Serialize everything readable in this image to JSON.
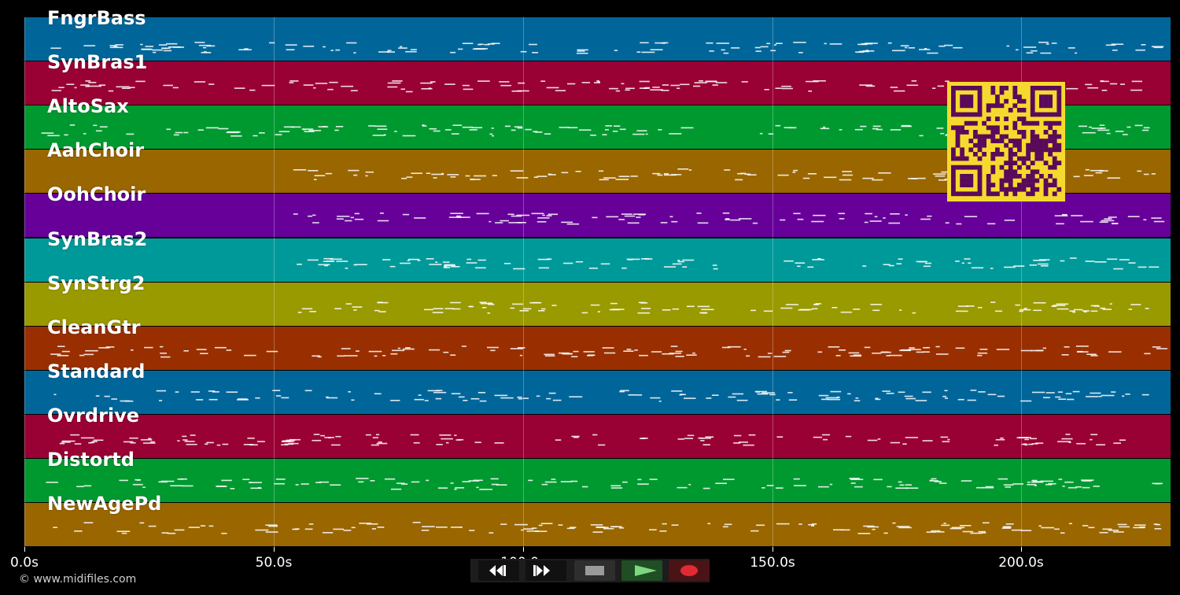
{
  "tracks": [
    {
      "name": "FngrBass",
      "color": "#00669a"
    },
    {
      "name": "SynBras1",
      "color": "#990033"
    },
    {
      "name": "AltoSax",
      "color": "#009930"
    },
    {
      "name": "AahChoir",
      "color": "#996600"
    },
    {
      "name": "OohChoir",
      "color": "#660099"
    },
    {
      "name": "SynBras2",
      "color": "#009999"
    },
    {
      "name": "SynStrg2",
      "color": "#999900"
    },
    {
      "name": "CleanGtr",
      "color": "#992f00"
    },
    {
      "name": "Standard",
      "color": "#00669a"
    },
    {
      "name": "Ovrdrive",
      "color": "#990033"
    },
    {
      "name": "Distortd",
      "color": "#009930"
    },
    {
      "name": "NewAgePd",
      "color": "#996600"
    }
  ],
  "timeline": {
    "ticks": [
      "0.0s",
      "50.0s",
      "100.0s",
      "150.0s",
      "200.0s"
    ]
  },
  "footer": {
    "copyright": "© www.midifiles.com"
  },
  "controls": {
    "rewind": "rewind-icon",
    "fast_forward": "fast-forward-icon",
    "stop": "stop-icon",
    "play": "play-icon",
    "record": "record-icon"
  },
  "colors": {
    "background": "#000000",
    "qr_fg": "#5a0a5a",
    "qr_bg": "#f6d92e"
  }
}
